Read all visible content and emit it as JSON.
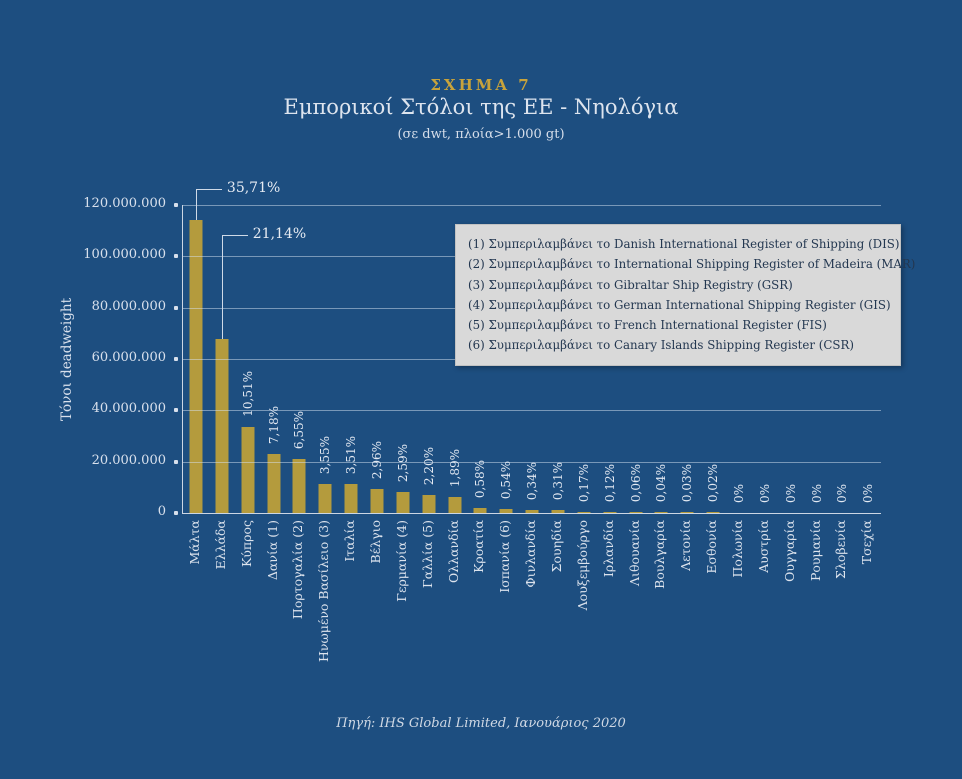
{
  "header": {
    "figure_label": "ΣΧΗΜΑ 7",
    "title": "Εμπορικοί Στόλοι της ΕΕ - Νηολόγια",
    "subtitle": "(σε dwt, πλοία>1.000 gt)"
  },
  "footer": {
    "source": "Πηγή: IHS Global Limited, Ιανουάριος 2020"
  },
  "legend": {
    "notes": [
      "(1) Συμπεριλαμβάνει το Danish International Register of Shipping (DIS)",
      "(2) Συμπεριλαμβάνει το International Shipping Register of Madeira (MAR)",
      "(3) Συμπεριλαμβάνει το Gibraltar Ship Registry (GSR)",
      "(4) Συμπεριλαμβάνει το German International Shipping Register (GIS)",
      "(5) Συμπεριλαμβάνει το French International Register (FIS)",
      "(6) Συμπεριλαμβάνει το Canary Islands Shipping Register (CSR)"
    ]
  },
  "colors": {
    "background": "#1d4e80",
    "bar": "#b49b3d",
    "accent_gold": "#c8a33b",
    "text_light": "#dde4ee",
    "legend_bg": "#d9d9d9"
  },
  "chart_data": {
    "type": "bar",
    "title": "Εμπορικοί Στόλοι της ΕΕ - Νηολόγια",
    "subtitle": "(σε dwt, πλοία>1.000 gt)",
    "ylabel": "Τόνοι deadweight",
    "xlabel": "",
    "ylim": [
      0,
      120000000
    ],
    "grid": true,
    "yticks": [
      {
        "value": 0,
        "label": "0"
      },
      {
        "value": 20000000,
        "label": "20.000.000"
      },
      {
        "value": 40000000,
        "label": "40.000.000"
      },
      {
        "value": 60000000,
        "label": "60.000.000"
      },
      {
        "value": 80000000,
        "label": "80.000.000"
      },
      {
        "value": 100000000,
        "label": "100.000.000"
      },
      {
        "value": 120000000,
        "label": "120.000.000"
      }
    ],
    "categories": [
      "Μάλτα",
      "Ελλάδα",
      "Κύπρος",
      "Δανία (1)",
      "Πορτογαλία (2)",
      "Ηνωμένο Βασίλειο (3)",
      "Ιταλία",
      "Βέλγιο",
      "Γερμανία (4)",
      "Γαλλία (5)",
      "Ολλανδία",
      "Κροατία",
      "Ισπανία (6)",
      "Φινλανδία",
      "Σουηδία",
      "Λουξεμβούργο",
      "Ιρλανδία",
      "Λιθουανία",
      "Βουλγαρία",
      "Λετονία",
      "Εσθονία",
      "Πολωνία",
      "Αυστρία",
      "Ουγγαρία",
      "Ρουμανία",
      "Σλοβενία",
      "Τσεχία"
    ],
    "values": [
      114300000,
      67700000,
      33600000,
      23000000,
      21000000,
      11400000,
      11200000,
      9500000,
      8300000,
      7000000,
      6100000,
      1900000,
      1700000,
      1100000,
      1000000,
      540000,
      380000,
      190000,
      130000,
      100000,
      60000,
      0,
      0,
      0,
      0,
      0,
      0
    ],
    "pct_labels": [
      "35,71%",
      "21,14%",
      "10,51%",
      "7,18%",
      "6,55%",
      "3,55%",
      "3,51%",
      "2,96%",
      "2,59%",
      "2,20%",
      "1,89%",
      "0,58%",
      "0,54%",
      "0,34%",
      "0,31%",
      "0,17%",
      "0,12%",
      "0,06%",
      "0,04%",
      "0,03%",
      "0,02%",
      "0%",
      "0%",
      "0%",
      "0%",
      "0%",
      "0%"
    ],
    "callouts": [
      {
        "index": 0,
        "label": "35,71%"
      },
      {
        "index": 1,
        "label": "21,14%"
      }
    ],
    "legend_position": "upper-right-inside"
  }
}
